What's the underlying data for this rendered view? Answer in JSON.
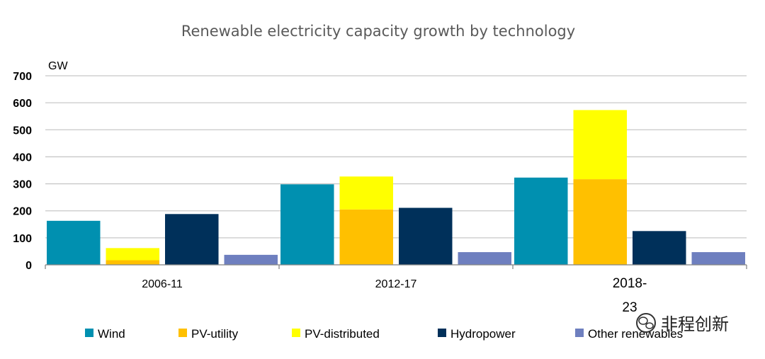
{
  "chart_data": {
    "type": "bar",
    "title": "Renewable electricity capacity growth by technology",
    "ylabel": "GW",
    "xlabel": "",
    "ylim": [
      0,
      700
    ],
    "yticks": [
      0,
      100,
      200,
      300,
      400,
      500,
      600,
      700
    ],
    "grid": true,
    "legend_position": "bottom",
    "categories": [
      "2006-11",
      "2012-17",
      "2018-\n23"
    ],
    "groups": [
      {
        "name": "Wind",
        "color": "#0090b0",
        "stack": [
          {
            "series": "Wind",
            "values": [
              163,
              298,
              323
            ]
          }
        ]
      },
      {
        "name": "PV",
        "stack": [
          {
            "series": "PV-utility",
            "color": "#ffc000",
            "values": [
              17,
              205,
              317
            ]
          },
          {
            "series": "PV-distributed",
            "color": "#ffff00",
            "values": [
              45,
              122,
              256
            ]
          }
        ]
      },
      {
        "name": "Hydropower",
        "color": "#00305a",
        "stack": [
          {
            "series": "Hydropower",
            "values": [
              188,
              211,
              125
            ]
          }
        ]
      },
      {
        "name": "Other renewables",
        "color": "#6e7fbf",
        "stack": [
          {
            "series": "Other renewables",
            "values": [
              37,
              47,
              47
            ]
          }
        ]
      }
    ],
    "series": [
      {
        "name": "Wind",
        "values": [
          163,
          298,
          323
        ]
      },
      {
        "name": "PV-utility",
        "values": [
          17,
          205,
          317
        ]
      },
      {
        "name": "PV-distributed",
        "values": [
          45,
          122,
          256
        ]
      },
      {
        "name": "Hydropower",
        "values": [
          188,
          211,
          125
        ]
      },
      {
        "name": "Other renewables",
        "values": [
          37,
          47,
          47
        ]
      }
    ]
  },
  "legend": [
    {
      "label": "Wind",
      "color": "#0090b0"
    },
    {
      "label": "PV-utility",
      "color": "#ffc000"
    },
    {
      "label": "PV-distributed",
      "color": "#ffff00"
    },
    {
      "label": "Hydropower",
      "color": "#00305a"
    },
    {
      "label": "Other renewables",
      "color": "#6e7fbf"
    }
  ],
  "watermark": {
    "text": "非程创新",
    "icon": "wechat-icon"
  }
}
